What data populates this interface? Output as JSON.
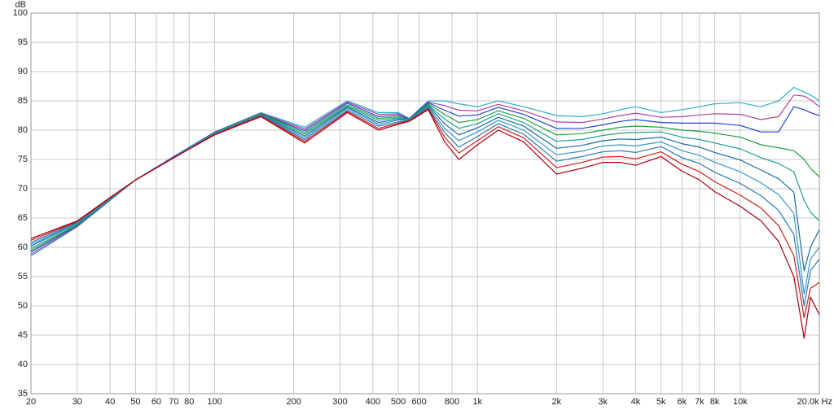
{
  "chart_data": {
    "type": "line",
    "ylabel": "dB",
    "xscale": "log",
    "grid": true,
    "xlim": [
      20,
      20000
    ],
    "ylim": [
      35,
      100
    ],
    "yticks": [
      35,
      40,
      45,
      50,
      55,
      60,
      65,
      70,
      75,
      80,
      85,
      90,
      95,
      100
    ],
    "xticks": [
      20,
      30,
      40,
      50,
      60,
      70,
      80,
      100,
      200,
      300,
      400,
      500,
      600,
      800,
      {
        "value": 1000,
        "label": "1k"
      },
      {
        "value": 2000,
        "label": "2k"
      },
      {
        "value": 3000,
        "label": "3k"
      },
      {
        "value": 4000,
        "label": "4k"
      },
      {
        "value": 5000,
        "label": "5k"
      },
      {
        "value": 6000,
        "label": "6k"
      },
      {
        "value": 7000,
        "label": "7k"
      },
      {
        "value": 8000,
        "label": "8k"
      },
      {
        "value": 10000,
        "label": "10k"
      },
      {
        "value": 20000,
        "label": "20.0k Hz"
      }
    ],
    "x": [
      20,
      30,
      40,
      50,
      70,
      100,
      150,
      220,
      320,
      420,
      500,
      550,
      650,
      750,
      850,
      1000,
      1200,
      1500,
      2000,
      2500,
      3000,
      3500,
      4000,
      5000,
      6000,
      7000,
      8000,
      10000,
      12000,
      14000,
      16000,
      17500,
      18500,
      20000
    ],
    "series": [
      {
        "color": "#2eb0c8",
        "values": [
          58.5,
          63.5,
          68,
          71.5,
          75.5,
          79.7,
          83,
          80.5,
          85,
          83,
          83,
          82,
          85,
          85,
          84.5,
          84,
          85,
          84,
          82.5,
          82.3,
          82.8,
          83.5,
          84,
          83,
          83.5,
          84,
          84.5,
          84.7,
          84,
          85,
          87.3,
          86.5,
          86,
          85
        ]
      },
      {
        "color": "#b0409a",
        "values": [
          58.8,
          63.6,
          68.1,
          71.5,
          75.5,
          79.6,
          82.9,
          80.2,
          84.8,
          82.7,
          82.8,
          81.9,
          84.8,
          84.2,
          83.4,
          83.3,
          84.4,
          83.3,
          81.4,
          81.3,
          81.9,
          82.5,
          82.9,
          82.2,
          82.3,
          82.6,
          82.8,
          82.7,
          81.8,
          82.3,
          86,
          85.8,
          85.2,
          84
        ]
      },
      {
        "color": "#2244d0",
        "values": [
          59.2,
          63.7,
          68.1,
          71.5,
          75.5,
          79.6,
          82.8,
          79.9,
          84.6,
          82.3,
          82.6,
          81.9,
          84.7,
          83.4,
          82.4,
          82.6,
          83.9,
          82.7,
          80.3,
          80.3,
          80.9,
          81.5,
          81.8,
          81.3,
          81.2,
          81.2,
          81.2,
          80.8,
          79.7,
          79.7,
          84,
          83.5,
          83,
          82.5
        ]
      },
      {
        "color": "#22a040",
        "values": [
          59.5,
          63.8,
          68.2,
          71.5,
          75.4,
          79.5,
          82.8,
          79.6,
          84.3,
          82,
          82.3,
          81.8,
          84.5,
          82.7,
          81.3,
          81.8,
          83.3,
          82,
          79.2,
          79.4,
          80,
          80.5,
          80.7,
          80.5,
          80,
          79.8,
          79.5,
          78.8,
          77.5,
          77,
          76.5,
          75,
          73.5,
          72
        ]
      },
      {
        "color": "#1fa08a",
        "values": [
          59.8,
          63.9,
          68.2,
          71.5,
          75.4,
          79.5,
          82.7,
          79.3,
          84.1,
          81.7,
          82.1,
          81.8,
          84.3,
          81.9,
          80.3,
          81.1,
          82.8,
          81.3,
          78.1,
          78.4,
          79.1,
          79.5,
          79.6,
          79.7,
          78.8,
          78.4,
          77.8,
          76.8,
          75.3,
          74.3,
          72.9,
          68,
          66,
          64.5
        ]
      },
      {
        "color": "#1a6ca0",
        "values": [
          60.2,
          64.1,
          68.3,
          71.5,
          75.4,
          79.4,
          82.6,
          79,
          83.9,
          81.3,
          81.9,
          81.7,
          84.2,
          81.1,
          79.2,
          80.4,
          82.2,
          80.7,
          76.9,
          77.4,
          78.2,
          78.5,
          78.4,
          78.8,
          77.7,
          77.1,
          76.2,
          74.9,
          73.2,
          71.7,
          69.4,
          56,
          60,
          63
        ]
      },
      {
        "color": "#3a96c8",
        "values": [
          60.5,
          64.2,
          68.3,
          71.5,
          75.4,
          79.4,
          82.5,
          78.7,
          83.7,
          81,
          81.7,
          81.7,
          84,
          80.3,
          78.2,
          79.7,
          81.7,
          80,
          75.8,
          76.4,
          77.3,
          77.5,
          77.3,
          78,
          76.5,
          75.7,
          74.5,
          72.9,
          71,
          69,
          65.8,
          52,
          58,
          60
        ]
      },
      {
        "color": "#2a78b8",
        "values": [
          60.8,
          64.3,
          68.4,
          71.5,
          75.3,
          79.3,
          82.5,
          78.4,
          83.4,
          80.7,
          81.4,
          81.6,
          83.8,
          79.6,
          77.1,
          78.9,
          81.1,
          79.3,
          74.7,
          75.5,
          76.3,
          76.5,
          76.2,
          77.2,
          75.3,
          74.3,
          72.8,
          70.9,
          68.8,
          66.3,
          62.2,
          50,
          56,
          58
        ]
      },
      {
        "color": "#c8201c",
        "values": [
          61.2,
          64.4,
          68.4,
          71.5,
          75.3,
          79.3,
          82.4,
          78.1,
          83.2,
          80.3,
          81.2,
          81.6,
          83.7,
          78.8,
          76.1,
          78.2,
          80.6,
          78.7,
          73.6,
          74.5,
          75.4,
          75.5,
          75.1,
          76.3,
          74.2,
          72.9,
          71.2,
          68.9,
          66.7,
          63.7,
          58.6,
          48,
          53,
          54
        ]
      },
      {
        "color": "#a80010",
        "values": [
          61.5,
          64.5,
          68.5,
          71.5,
          75.3,
          79.2,
          82.3,
          77.8,
          83,
          80,
          81,
          81.5,
          83.5,
          78,
          75,
          77.5,
          80,
          78,
          72.5,
          73.5,
          74.5,
          74.5,
          74,
          75.5,
          73,
          71.5,
          69.5,
          67,
          64.5,
          61,
          55,
          44.5,
          51.5,
          48.5
        ]
      }
    ]
  }
}
